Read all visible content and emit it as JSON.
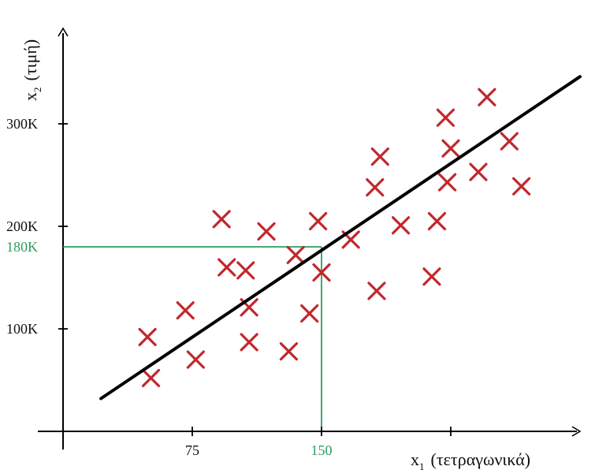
{
  "chart_data": {
    "type": "scatter",
    "title": "",
    "xlabel_main": "x",
    "xlabel_sub": "1",
    "xlabel_text": "(τετραγωνικά)",
    "ylabel_main": "x",
    "ylabel_sub": "2",
    "ylabel_text": "(τιμή)",
    "x_ticks": [
      {
        "value": 75,
        "label": "75"
      },
      {
        "value": 150,
        "label": "150"
      },
      {
        "value": 225,
        "label": ""
      }
    ],
    "y_ticks": [
      {
        "value": 100,
        "label": "100K"
      },
      {
        "value": 200,
        "label": "200K"
      },
      {
        "value": 300,
        "label": "300K"
      }
    ],
    "xlim": [
      0,
      305
    ],
    "ylim": [
      0,
      400
    ],
    "points": [
      {
        "x": 49,
        "y": 92
      },
      {
        "x": 51,
        "y": 52
      },
      {
        "x": 71,
        "y": 118
      },
      {
        "x": 77,
        "y": 70
      },
      {
        "x": 92,
        "y": 207
      },
      {
        "x": 95,
        "y": 160
      },
      {
        "x": 106,
        "y": 157
      },
      {
        "x": 108,
        "y": 121
      },
      {
        "x": 108,
        "y": 87
      },
      {
        "x": 118,
        "y": 195
      },
      {
        "x": 131,
        "y": 78
      },
      {
        "x": 135,
        "y": 172
      },
      {
        "x": 143,
        "y": 115
      },
      {
        "x": 148,
        "y": 205
      },
      {
        "x": 150,
        "y": 155
      },
      {
        "x": 167,
        "y": 187
      },
      {
        "x": 181,
        "y": 238
      },
      {
        "x": 182,
        "y": 137
      },
      {
        "x": 184,
        "y": 268
      },
      {
        "x": 196,
        "y": 201
      },
      {
        "x": 214,
        "y": 151
      },
      {
        "x": 217,
        "y": 205
      },
      {
        "x": 222,
        "y": 306
      },
      {
        "x": 223,
        "y": 243
      },
      {
        "x": 225,
        "y": 276
      },
      {
        "x": 241,
        "y": 253
      },
      {
        "x": 246,
        "y": 326
      },
      {
        "x": 259,
        "y": 283
      },
      {
        "x": 266,
        "y": 239
      }
    ],
    "fit_line": {
      "x": [
        22,
        300
      ],
      "y": [
        32,
        346
      ]
    },
    "highlight": {
      "x": 150,
      "y": 180,
      "x_label": "150",
      "y_label": "180K",
      "color": "#2e9e5e"
    },
    "point_color": "#c0282d",
    "line_color": "#000000",
    "grid": false
  }
}
